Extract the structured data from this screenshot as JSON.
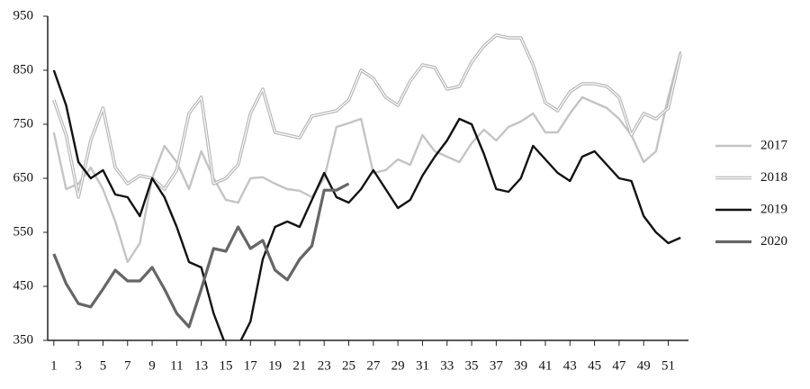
{
  "chart_data": {
    "type": "line",
    "x": [
      1,
      2,
      3,
      4,
      5,
      6,
      7,
      8,
      9,
      10,
      11,
      12,
      13,
      14,
      15,
      16,
      17,
      18,
      19,
      20,
      21,
      22,
      23,
      24,
      25,
      26,
      27,
      28,
      29,
      30,
      31,
      32,
      33,
      34,
      35,
      36,
      37,
      38,
      39,
      40,
      41,
      42,
      43,
      44,
      45,
      46,
      47,
      48,
      49,
      50,
      51,
      52
    ],
    "xlim": [
      0.5,
      52.5
    ],
    "xticks": [
      1,
      3,
      5,
      7,
      9,
      11,
      13,
      15,
      17,
      19,
      21,
      23,
      25,
      27,
      29,
      31,
      33,
      35,
      37,
      39,
      41,
      43,
      45,
      47,
      49,
      51
    ],
    "ylim": [
      350,
      950
    ],
    "yticks": [
      350,
      450,
      550,
      650,
      750,
      850,
      950
    ],
    "legend": "right",
    "series": [
      {
        "name": "2017",
        "color": "#c4c4c4",
        "style": "single",
        "values": [
          735,
          630,
          640,
          670,
          630,
          570,
          495,
          530,
          650,
          710,
          680,
          630,
          700,
          650,
          610,
          605,
          650,
          652,
          640,
          630,
          627,
          615,
          650,
          745,
          752,
          760,
          660,
          665,
          685,
          675,
          730,
          700,
          690,
          680,
          715,
          740,
          720,
          745,
          755,
          770,
          735,
          735,
          770,
          800,
          790,
          780,
          760,
          730,
          680,
          700,
          800,
          885
        ]
      },
      {
        "name": "2018",
        "color": "#b4b4b4",
        "style": "double",
        "values": [
          795,
          730,
          615,
          720,
          780,
          670,
          640,
          655,
          650,
          630,
          665,
          770,
          800,
          640,
          650,
          675,
          770,
          815,
          735,
          730,
          725,
          765,
          770,
          775,
          795,
          850,
          835,
          800,
          785,
          830,
          860,
          855,
          815,
          820,
          865,
          895,
          915,
          910,
          910,
          860,
          790,
          775,
          810,
          825,
          825,
          820,
          800,
          730,
          770,
          760,
          780,
          880
        ]
      },
      {
        "name": "2019",
        "color": "#111111",
        "style": "single",
        "values": [
          850,
          785,
          680,
          650,
          665,
          620,
          615,
          580,
          650,
          615,
          560,
          495,
          485,
          400,
          340,
          340,
          385,
          500,
          560,
          570,
          560,
          610,
          660,
          615,
          605,
          630,
          665,
          630,
          595,
          610,
          655,
          690,
          720,
          760,
          750,
          695,
          630,
          625,
          650,
          710,
          685,
          660,
          645,
          690,
          700,
          675,
          650,
          645,
          580,
          550,
          530,
          540
        ]
      },
      {
        "name": "2020",
        "color": "#666666",
        "style": "single",
        "values": [
          510,
          455,
          418,
          412,
          445,
          480,
          460,
          460,
          485,
          445,
          400,
          375,
          445,
          520,
          515,
          560,
          520,
          535,
          480,
          462,
          500,
          525,
          628,
          628,
          640,
          null,
          null,
          null,
          null,
          null,
          null,
          null,
          null,
          null,
          null,
          null,
          null,
          null,
          null,
          null,
          null,
          null,
          null,
          null,
          null,
          null,
          null,
          null,
          null,
          null,
          null,
          null
        ]
      }
    ]
  }
}
